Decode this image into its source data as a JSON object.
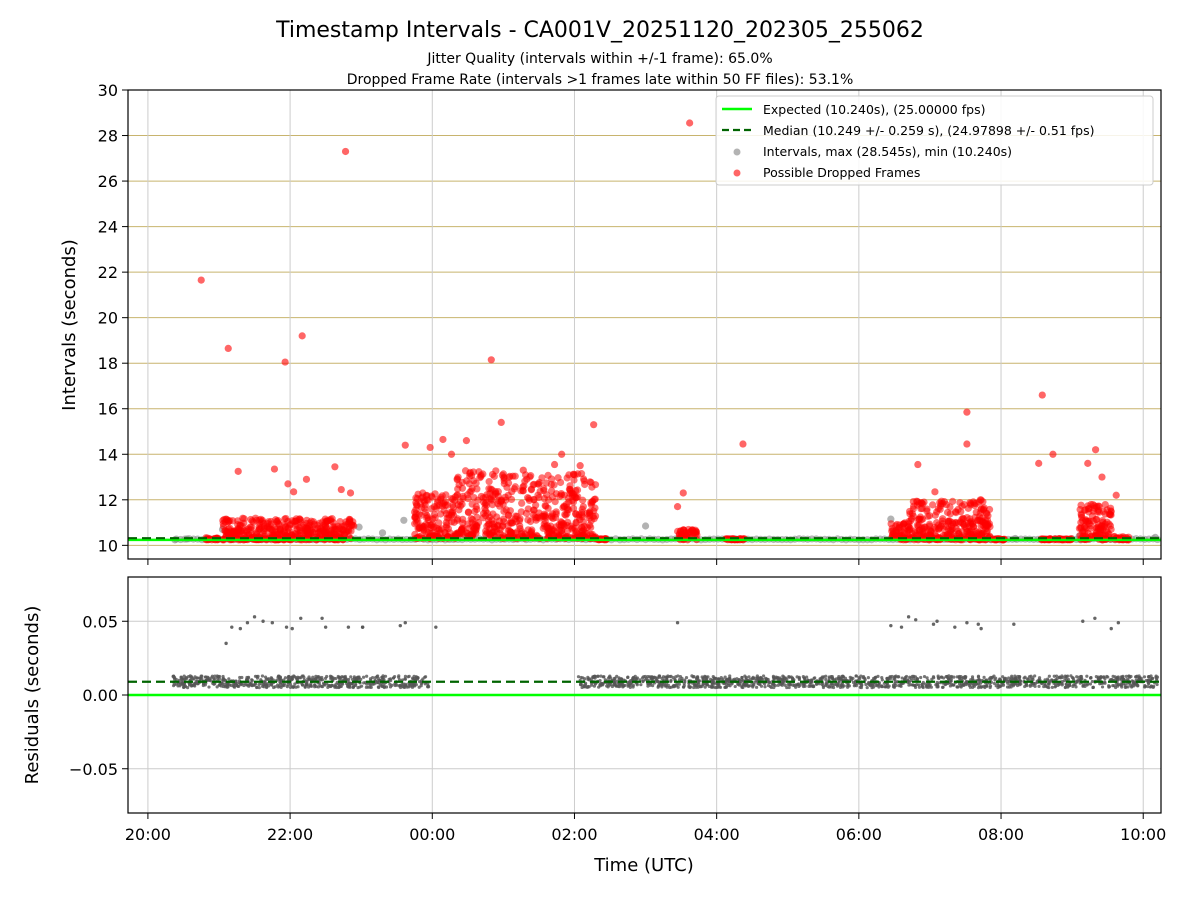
{
  "chart_data": [
    {
      "type": "scatter",
      "title": "Timestamp Intervals - CA001V_20251120_202305_255062",
      "subtitle_1": "Jitter Quality (intervals within +/-1 frame): 65.0%",
      "subtitle_2": "Dropped Frame Rate (intervals >1 frames late within 50 FF files): 53.1%",
      "ylabel": "Intervals (seconds)",
      "xlabel": "",
      "xlim_hours": [
        19.72,
        34.25
      ],
      "ylim": [
        9.4,
        30
      ],
      "yticks": [
        10,
        12,
        14,
        16,
        18,
        20,
        22,
        24,
        26,
        28,
        30
      ],
      "ytick_labels": [
        "10",
        "12",
        "14",
        "16",
        "18",
        "20",
        "22",
        "24",
        "26",
        "28",
        "30"
      ],
      "xticks_hours": [
        20,
        22,
        24,
        26,
        28,
        30,
        32,
        34
      ],
      "grid": "x and y",
      "legend_position": "top-right",
      "legend": [
        "Expected (10.240s), (25.00000 fps)",
        "Median (10.249 +/- 0.259 s), (24.97898 +/- 0.51 fps)",
        "Intervals, max (28.545s), min (10.240s)",
        "Possible Dropped Frames"
      ],
      "expected_line": 10.24,
      "median_line": 10.249,
      "series": [
        {
          "name": "Possible Dropped Frames (outliers)",
          "color": "#ff0000",
          "points": [
            [
              20.75,
              21.65
            ],
            [
              21.13,
              18.65
            ],
            [
              21.93,
              18.05
            ],
            [
              22.17,
              19.2
            ],
            [
              22.78,
              27.3
            ],
            [
              24.83,
              18.15
            ],
            [
              24.97,
              15.4
            ],
            [
              26.27,
              15.3
            ],
            [
              27.62,
              28.55
            ],
            [
              28.37,
              14.45
            ],
            [
              31.52,
              15.85
            ],
            [
              32.58,
              16.6
            ],
            [
              32.73,
              14.0
            ],
            [
              32.53,
              13.6
            ],
            [
              33.33,
              14.2
            ],
            [
              23.62,
              14.4
            ],
            [
              23.97,
              14.3
            ],
            [
              24.15,
              14.65
            ],
            [
              24.48,
              14.6
            ],
            [
              24.27,
              14.0
            ],
            [
              21.27,
              13.25
            ],
            [
              21.78,
              13.35
            ],
            [
              22.63,
              13.45
            ],
            [
              22.23,
              12.9
            ],
            [
              22.85,
              12.3
            ],
            [
              21.97,
              12.7
            ],
            [
              22.05,
              12.35
            ],
            [
              27.53,
              12.3
            ],
            [
              27.45,
              11.7
            ],
            [
              30.83,
              13.55
            ],
            [
              31.52,
              14.45
            ],
            [
              31.07,
              12.35
            ],
            [
              33.62,
              12.2
            ],
            [
              33.22,
              13.6
            ],
            [
              33.42,
              13.0
            ],
            [
              22.72,
              12.45
            ],
            [
              25.28,
              13.3
            ],
            [
              25.82,
              14.0
            ],
            [
              25.72,
              13.55
            ],
            [
              26.08,
              13.5
            ]
          ]
        },
        {
          "name": "Intervals (in-tolerance, grey)",
          "color": "#808080",
          "points": [
            [
              20.38,
              10.24
            ],
            [
              20.55,
              10.28
            ],
            [
              21.05,
              10.7
            ],
            [
              22.25,
              10.4
            ],
            [
              22.97,
              10.8
            ],
            [
              23.3,
              10.55
            ],
            [
              23.6,
              11.1
            ],
            [
              27.0,
              10.85
            ],
            [
              27.55,
              10.45
            ],
            [
              30.45,
              11.15
            ],
            [
              30.52,
              10.65
            ],
            [
              32.2,
              10.3
            ],
            [
              33.1,
              10.4
            ],
            [
              34.17,
              10.35
            ],
            [
              25.5,
              10.3
            ]
          ]
        }
      ],
      "dense_bands": [
        {
          "from": 20.8,
          "to": 21.0,
          "min": 10.24,
          "max": 10.35,
          "color": "red"
        },
        {
          "from": 21.05,
          "to": 22.9,
          "min": 10.24,
          "max": 11.2,
          "color": "red"
        },
        {
          "from": 23.75,
          "to": 24.35,
          "min": 10.3,
          "max": 12.3,
          "color": "red"
        },
        {
          "from": 24.35,
          "to": 24.95,
          "min": 10.4,
          "max": 13.3,
          "color": "red"
        },
        {
          "from": 24.95,
          "to": 26.3,
          "min": 10.3,
          "max": 13.2,
          "color": "red"
        },
        {
          "from": 26.3,
          "to": 26.45,
          "min": 10.24,
          "max": 10.3,
          "color": "red"
        },
        {
          "from": 27.45,
          "to": 27.75,
          "min": 10.24,
          "max": 10.7,
          "color": "red"
        },
        {
          "from": 28.1,
          "to": 28.4,
          "min": 10.24,
          "max": 10.3,
          "color": "red"
        },
        {
          "from": 30.45,
          "to": 30.7,
          "min": 10.24,
          "max": 11.0,
          "color": "red"
        },
        {
          "from": 30.7,
          "to": 31.85,
          "min": 10.24,
          "max": 12.0,
          "color": "red"
        },
        {
          "from": 31.85,
          "to": 32.05,
          "min": 10.24,
          "max": 10.3,
          "color": "red"
        },
        {
          "from": 32.55,
          "to": 33.0,
          "min": 10.24,
          "max": 10.3,
          "color": "red"
        },
        {
          "from": 33.1,
          "to": 33.55,
          "min": 10.24,
          "max": 11.8,
          "color": "red"
        },
        {
          "from": 33.55,
          "to": 33.8,
          "min": 10.24,
          "max": 10.4,
          "color": "red"
        }
      ]
    },
    {
      "type": "scatter",
      "ylabel": "Residuals (seconds)",
      "xlabel": "Time (UTC)",
      "ylim": [
        -0.08,
        0.08
      ],
      "yticks": [
        -0.05,
        0.0,
        0.05
      ],
      "ytick_labels": [
        "−0.05",
        "0.00",
        "0.05"
      ],
      "xticks_hours": [
        20,
        22,
        24,
        26,
        28,
        30,
        32,
        34
      ],
      "xtick_labels": [
        "20:00",
        "22:00",
        "00:00",
        "02:00",
        "04:00",
        "06:00",
        "08:00",
        "10:00"
      ],
      "expected_line": 0.0,
      "median_line": 0.009,
      "series": [
        {
          "name": "Residual outliers",
          "color": "#555555",
          "points": [
            [
              21.1,
              0.035
            ],
            [
              21.18,
              0.046
            ],
            [
              21.3,
              0.045
            ],
            [
              21.4,
              0.049
            ],
            [
              21.5,
              0.053
            ],
            [
              21.62,
              0.05
            ],
            [
              21.75,
              0.049
            ],
            [
              21.95,
              0.046
            ],
            [
              22.03,
              0.045
            ],
            [
              22.15,
              0.052
            ],
            [
              22.45,
              0.052
            ],
            [
              22.5,
              0.046
            ],
            [
              22.82,
              0.046
            ],
            [
              23.02,
              0.046
            ],
            [
              23.55,
              0.047
            ],
            [
              23.62,
              0.049
            ],
            [
              23.02,
              0.046
            ],
            [
              24.05,
              0.046
            ],
            [
              27.45,
              0.049
            ],
            [
              30.45,
              0.047
            ],
            [
              30.6,
              0.046
            ],
            [
              30.7,
              0.053
            ],
            [
              30.8,
              0.051
            ],
            [
              31.05,
              0.048
            ],
            [
              31.1,
              0.05
            ],
            [
              31.35,
              0.046
            ],
            [
              31.52,
              0.049
            ],
            [
              31.68,
              0.048
            ],
            [
              31.72,
              0.045
            ],
            [
              32.18,
              0.048
            ],
            [
              33.15,
              0.05
            ],
            [
              33.32,
              0.052
            ],
            [
              33.55,
              0.045
            ],
            [
              33.65,
              0.049
            ]
          ]
        }
      ],
      "dense_bands": [
        {
          "from": 20.35,
          "to": 23.95,
          "min": 0.005,
          "max": 0.013
        },
        {
          "from": 26.05,
          "to": 34.2,
          "min": 0.005,
          "max": 0.013
        }
      ]
    }
  ]
}
